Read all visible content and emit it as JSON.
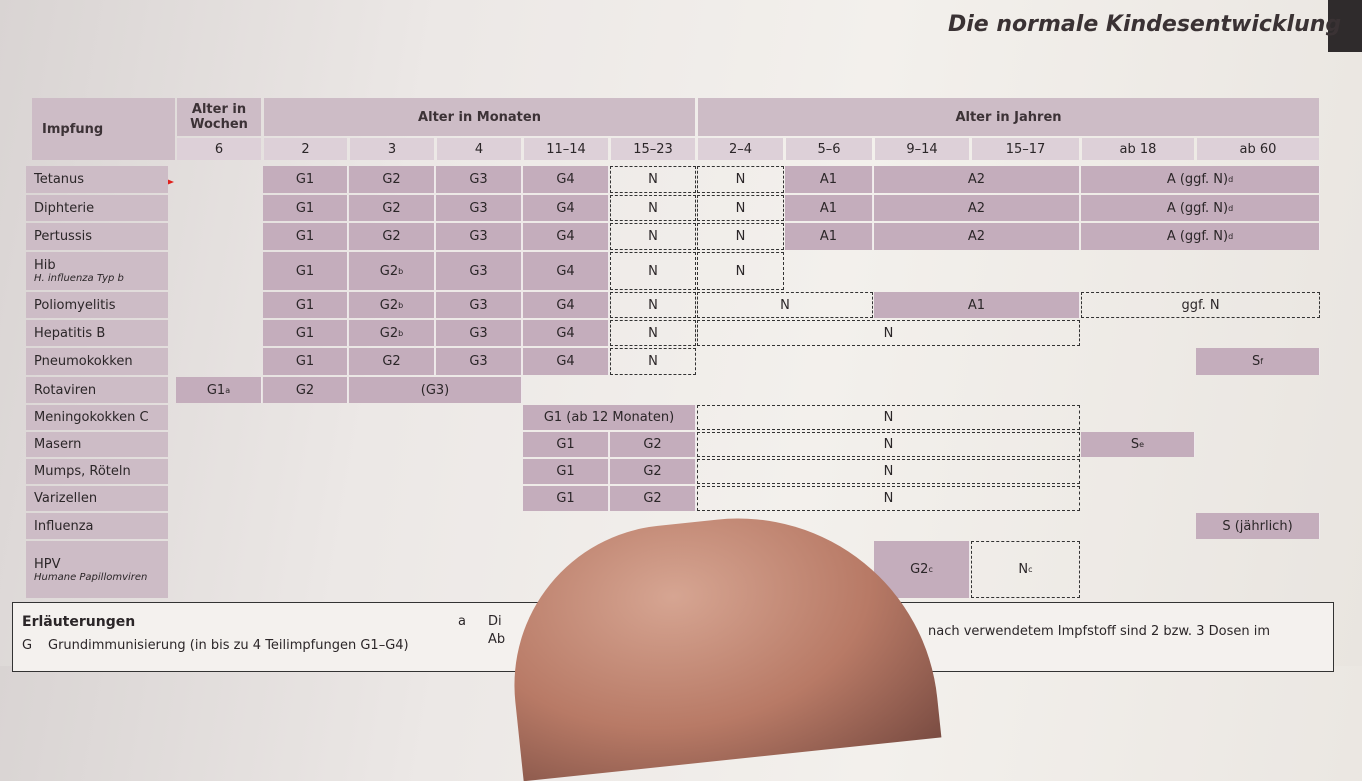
{
  "header": {
    "title": "Die normale Kindesentwicklung"
  },
  "table": {
    "corner": "Impfung",
    "groups": [
      {
        "label": "Alter in Wochen",
        "span": 1
      },
      {
        "label": "Alter in Monaten",
        "span": 5
      },
      {
        "label": "Alter in Jahren",
        "span": 6
      }
    ],
    "ages": [
      "6",
      "2",
      "3",
      "4",
      "11–14",
      "15–23",
      "2–4",
      "5–6",
      "9–14",
      "15–17",
      "ab 18",
      "ab 60"
    ],
    "rows": [
      {
        "name": "Tetanus",
        "cells": [
          {
            "text": "G1",
            "col": 1,
            "span": 1,
            "style": "shaded"
          },
          {
            "text": "G2",
            "col": 2,
            "span": 1,
            "style": "shaded"
          },
          {
            "text": "G3",
            "col": 3,
            "span": 1,
            "style": "shaded"
          },
          {
            "text": "G4",
            "col": 4,
            "span": 1,
            "style": "shaded"
          },
          {
            "text": "N",
            "col": 5,
            "span": 1,
            "style": "dashed"
          },
          {
            "text": "N",
            "col": 6,
            "span": 1,
            "style": "dashed"
          },
          {
            "text": "A1",
            "col": 7,
            "span": 1,
            "style": "shaded"
          },
          {
            "text": "A2",
            "col": 8,
            "span": 2,
            "style": "shaded"
          },
          {
            "text": "A (ggf. N)",
            "sup": "d",
            "col": 10,
            "span": 2,
            "style": "shaded"
          }
        ]
      },
      {
        "name": "Diphterie",
        "cells": [
          {
            "text": "G1",
            "col": 1,
            "span": 1,
            "style": "shaded"
          },
          {
            "text": "G2",
            "col": 2,
            "span": 1,
            "style": "shaded"
          },
          {
            "text": "G3",
            "col": 3,
            "span": 1,
            "style": "shaded"
          },
          {
            "text": "G4",
            "col": 4,
            "span": 1,
            "style": "shaded"
          },
          {
            "text": "N",
            "col": 5,
            "span": 1,
            "style": "dashed"
          },
          {
            "text": "N",
            "col": 6,
            "span": 1,
            "style": "dashed"
          },
          {
            "text": "A1",
            "col": 7,
            "span": 1,
            "style": "shaded"
          },
          {
            "text": "A2",
            "col": 8,
            "span": 2,
            "style": "shaded"
          },
          {
            "text": "A (ggf. N)",
            "sup": "d",
            "col": 10,
            "span": 2,
            "style": "shaded"
          }
        ]
      },
      {
        "name": "Pertussis",
        "cells": [
          {
            "text": "G1",
            "col": 1,
            "span": 1,
            "style": "shaded"
          },
          {
            "text": "G2",
            "col": 2,
            "span": 1,
            "style": "shaded"
          },
          {
            "text": "G3",
            "col": 3,
            "span": 1,
            "style": "shaded"
          },
          {
            "text": "G4",
            "col": 4,
            "span": 1,
            "style": "shaded"
          },
          {
            "text": "N",
            "col": 5,
            "span": 1,
            "style": "dashed"
          },
          {
            "text": "N",
            "col": 6,
            "span": 1,
            "style": "dashed"
          },
          {
            "text": "A1",
            "col": 7,
            "span": 1,
            "style": "shaded"
          },
          {
            "text": "A2",
            "col": 8,
            "span": 2,
            "style": "shaded"
          },
          {
            "text": "A (ggf. N)",
            "sup": "d",
            "col": 10,
            "span": 2,
            "style": "shaded"
          }
        ]
      },
      {
        "name": "Hib",
        "sub": "H. influenza Typ b",
        "cells": [
          {
            "text": "G1",
            "col": 1,
            "span": 1,
            "style": "shaded"
          },
          {
            "text": "G2",
            "sup": "b",
            "col": 2,
            "span": 1,
            "style": "shaded"
          },
          {
            "text": "G3",
            "col": 3,
            "span": 1,
            "style": "shaded"
          },
          {
            "text": "G4",
            "col": 4,
            "span": 1,
            "style": "shaded"
          },
          {
            "text": "N",
            "col": 5,
            "span": 1,
            "style": "dashed"
          },
          {
            "text": "N",
            "col": 6,
            "span": 1,
            "style": "dashed"
          }
        ]
      },
      {
        "name": "Poliomyelitis",
        "cells": [
          {
            "text": "G1",
            "col": 1,
            "span": 1,
            "style": "shaded"
          },
          {
            "text": "G2",
            "sup": "b",
            "col": 2,
            "span": 1,
            "style": "shaded"
          },
          {
            "text": "G3",
            "col": 3,
            "span": 1,
            "style": "shaded"
          },
          {
            "text": "G4",
            "col": 4,
            "span": 1,
            "style": "shaded"
          },
          {
            "text": "N",
            "col": 5,
            "span": 1,
            "style": "dashed"
          },
          {
            "text": "N",
            "col": 6,
            "span": 2,
            "style": "dashed"
          },
          {
            "text": "A1",
            "col": 8,
            "span": 2,
            "style": "shaded"
          },
          {
            "text": "ggf. N",
            "col": 10,
            "span": 2,
            "style": "dashed"
          }
        ]
      },
      {
        "name": "Hepatitis B",
        "cells": [
          {
            "text": "G1",
            "col": 1,
            "span": 1,
            "style": "shaded"
          },
          {
            "text": "G2",
            "sup": "b",
            "col": 2,
            "span": 1,
            "style": "shaded"
          },
          {
            "text": "G3",
            "col": 3,
            "span": 1,
            "style": "shaded"
          },
          {
            "text": "G4",
            "col": 4,
            "span": 1,
            "style": "shaded"
          },
          {
            "text": "N",
            "col": 5,
            "span": 1,
            "style": "dashed"
          },
          {
            "text": "N",
            "col": 6,
            "span": 4,
            "style": "dashed"
          }
        ]
      },
      {
        "name": "Pneumokokken",
        "cells": [
          {
            "text": "G1",
            "col": 1,
            "span": 1,
            "style": "shaded"
          },
          {
            "text": "G2",
            "col": 2,
            "span": 1,
            "style": "shaded"
          },
          {
            "text": "G3",
            "col": 3,
            "span": 1,
            "style": "shaded"
          },
          {
            "text": "G4",
            "col": 4,
            "span": 1,
            "style": "shaded"
          },
          {
            "text": "N",
            "col": 5,
            "span": 1,
            "style": "dashed"
          },
          {
            "text": "S",
            "sup": "f",
            "col": 11,
            "span": 1,
            "style": "shaded"
          }
        ]
      },
      {
        "name": "Rotaviren",
        "cells": [
          {
            "text": "G1",
            "sup": "a",
            "col": 0,
            "span": 1,
            "style": "shaded"
          },
          {
            "text": "G2",
            "col": 1,
            "span": 1,
            "style": "shaded"
          },
          {
            "text": "(G3)",
            "col": 2,
            "span": 2,
            "style": "shaded"
          }
        ]
      },
      {
        "name": "Meningokokken C",
        "cells": [
          {
            "text": "G1 (ab 12 Monaten)",
            "col": 4,
            "span": 2,
            "style": "shaded"
          },
          {
            "text": "N",
            "col": 6,
            "span": 4,
            "style": "dashed"
          }
        ]
      },
      {
        "name": "Masern",
        "cells": [
          {
            "text": "G1",
            "col": 4,
            "span": 1,
            "style": "shaded"
          },
          {
            "text": "G2",
            "col": 5,
            "span": 1,
            "style": "shaded"
          },
          {
            "text": "N",
            "col": 6,
            "span": 4,
            "style": "dashed"
          },
          {
            "text": "S",
            "sup": "e",
            "col": 10,
            "span": 1,
            "style": "shaded"
          }
        ]
      },
      {
        "name": "Mumps, Röteln",
        "cells": [
          {
            "text": "G1",
            "col": 4,
            "span": 1,
            "style": "shaded"
          },
          {
            "text": "G2",
            "col": 5,
            "span": 1,
            "style": "shaded"
          },
          {
            "text": "N",
            "col": 6,
            "span": 4,
            "style": "dashed"
          }
        ]
      },
      {
        "name": "Varizellen",
        "cells": [
          {
            "text": "G1",
            "col": 4,
            "span": 1,
            "style": "shaded"
          },
          {
            "text": "G2",
            "col": 5,
            "span": 1,
            "style": "shaded"
          },
          {
            "text": "N",
            "col": 6,
            "span": 4,
            "style": "dashed"
          }
        ]
      },
      {
        "name": "Influenza",
        "cells": [
          {
            "text": "S (jährlich)",
            "col": 11,
            "span": 1,
            "style": "shaded"
          }
        ]
      },
      {
        "name": "HPV",
        "sub": "Humane Papillomviren",
        "cells": [
          {
            "text": "G2",
            "sup": "c",
            "col": 8,
            "span": 1,
            "style": "shaded"
          },
          {
            "text": "N",
            "sup": "c",
            "col": 9,
            "span": 1,
            "style": "dashed"
          }
        ]
      }
    ]
  },
  "notes": {
    "title": "Erläuterungen",
    "items": [
      {
        "key": "G",
        "text": "Grundimmunisierung (in bis zu 4 Teilimpfungen G1–G4)"
      },
      {
        "key": "a",
        "text": "Di"
      }
    ],
    "fragments": [
      "Ab",
      "nach verwendetem Impfstoff sind 2 bzw. 3 Dosen im"
    ]
  }
}
